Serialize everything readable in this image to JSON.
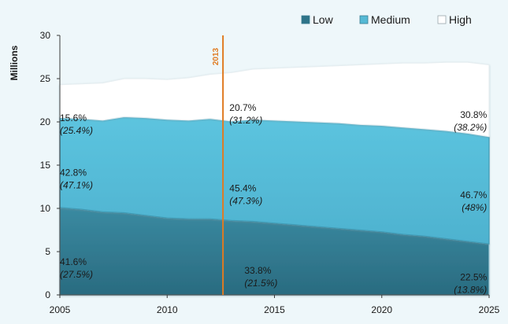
{
  "chart_data": {
    "type": "area",
    "stacked": true,
    "x": [
      2005,
      2006,
      2007,
      2008,
      2009,
      2010,
      2011,
      2012,
      2013,
      2014,
      2015,
      2016,
      2017,
      2018,
      2019,
      2020,
      2021,
      2022,
      2023,
      2024,
      2025
    ],
    "series": [
      {
        "name": "Low",
        "color": "#2e7489",
        "values": [
          10.1,
          9.9,
          9.6,
          9.5,
          9.2,
          8.9,
          8.8,
          8.8,
          8.6,
          8.5,
          8.3,
          8.1,
          7.9,
          7.7,
          7.5,
          7.3,
          7.0,
          6.8,
          6.5,
          6.2,
          5.9
        ]
      },
      {
        "name": "Medium",
        "color": "#55b9d5",
        "values": [
          10.4,
          10.5,
          10.6,
          11.1,
          11.3,
          11.4,
          11.4,
          11.6,
          11.5,
          11.8,
          11.9,
          12.0,
          12.1,
          12.2,
          12.2,
          12.3,
          12.4,
          12.4,
          12.5,
          12.5,
          12.4
        ]
      },
      {
        "name": "High",
        "color": "#ffffff",
        "values": [
          3.8,
          4.0,
          4.3,
          4.4,
          4.5,
          4.6,
          4.9,
          5.1,
          5.6,
          5.8,
          6.0,
          6.2,
          6.4,
          6.6,
          6.9,
          7.1,
          7.4,
          7.6,
          7.9,
          8.2,
          8.3
        ]
      }
    ],
    "ylabel": "Millions",
    "ylim": [
      0,
      30
    ],
    "yticks": [
      "0",
      "5",
      "10",
      "15",
      "20",
      "25",
      "30"
    ],
    "xlim": [
      2005,
      2025
    ],
    "xticks": [
      "2005",
      "2010",
      "2015",
      "2020",
      "2025"
    ],
    "grid": false,
    "legend_position": "top-right",
    "marker": {
      "x": 2012.6,
      "label": "2013",
      "color": "#e07b22"
    },
    "annotations": [
      {
        "x": 2005,
        "y": 18.8,
        "align": "start",
        "share": "15.6%",
        "share_italic": "(25.4%)"
      },
      {
        "x": 2005,
        "y": 12.5,
        "align": "start",
        "share": "42.8%",
        "share_italic": "(47.1%)"
      },
      {
        "x": 2005,
        "y": 2.2,
        "align": "start",
        "share": "41.6%",
        "share_italic": "(27.5%)"
      },
      {
        "x": 2012.9,
        "y": 20.0,
        "align": "start",
        "share": "20.7%",
        "share_italic": "(31.2%)"
      },
      {
        "x": 2012.9,
        "y": 10.7,
        "align": "start",
        "share": "45.4%",
        "share_italic": "(47.3%)"
      },
      {
        "x": 2013.6,
        "y": 1.2,
        "align": "start",
        "share": "33.8%",
        "share_italic": "(21.5%)"
      },
      {
        "x": 2024.9,
        "y": 19.2,
        "align": "end",
        "share": "30.8%",
        "share_italic": "(38.2%)"
      },
      {
        "x": 2024.9,
        "y": 9.9,
        "align": "end",
        "share": "46.7%",
        "share_italic": "(48%)"
      },
      {
        "x": 2024.9,
        "y": 0.4,
        "align": "end",
        "share": "22.5%",
        "share_italic": "(13.8%)"
      }
    ]
  }
}
